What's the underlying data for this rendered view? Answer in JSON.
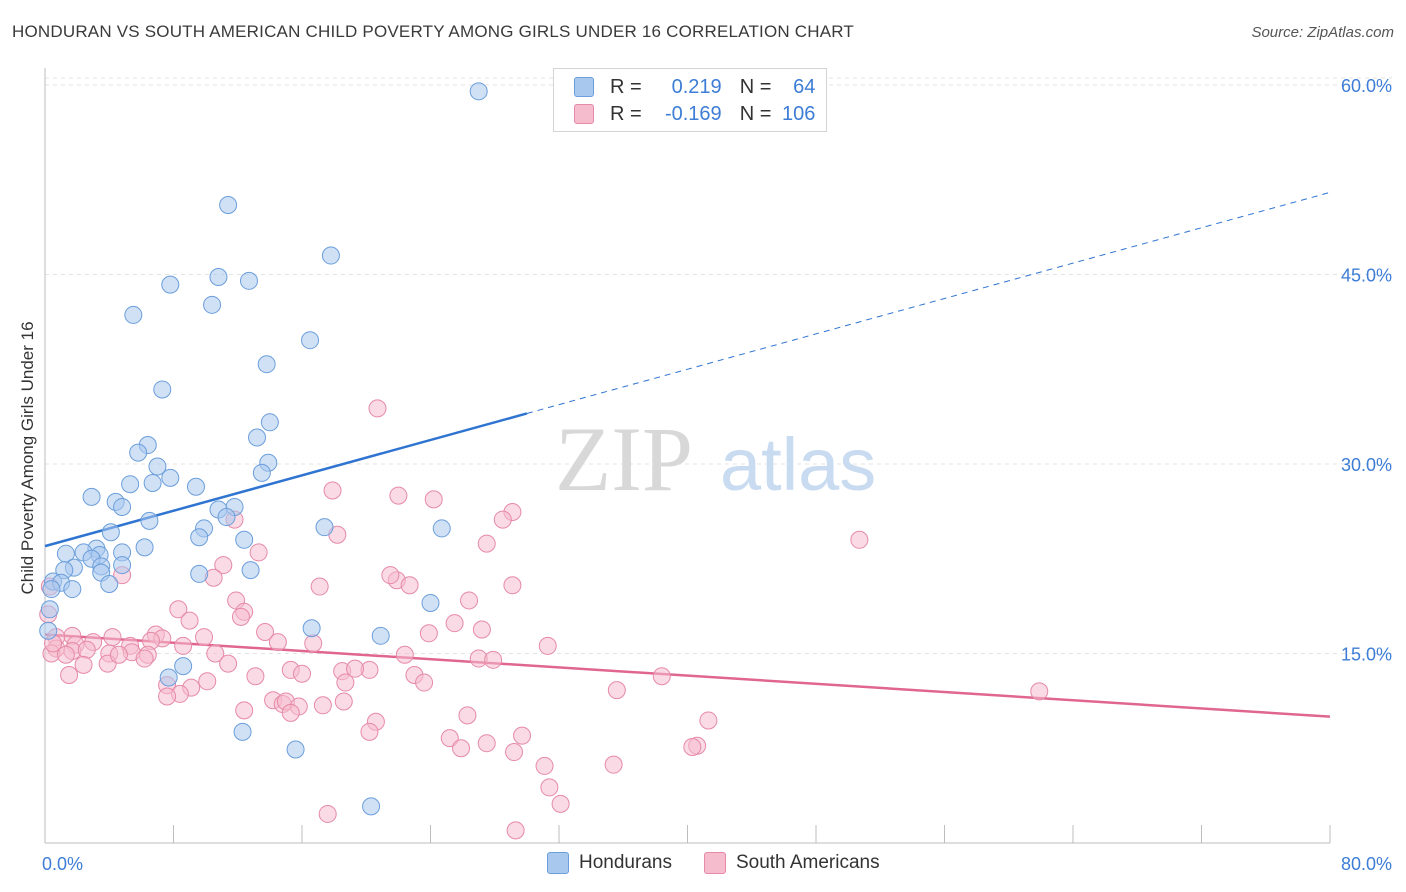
{
  "title": "HONDURAN VS SOUTH AMERICAN CHILD POVERTY AMONG GIRLS UNDER 16 CORRELATION CHART",
  "source": "Source: ZipAtlas.com",
  "watermark": {
    "zip": "ZIP",
    "atlas": "atlas"
  },
  "colors": {
    "blue_fill": "#a9c8ee",
    "blue_stroke": "#6b9edb",
    "blue_line": "#2f74d0",
    "pink_fill": "#f5bccd",
    "pink_stroke": "#e68aa8",
    "pink_line": "#e0668f",
    "tick_text": "#3d7dd6",
    "grid": "#e3e3e3"
  },
  "legend_stats": [
    {
      "series": "Hondurans",
      "r_label": "R =",
      "r_value": "0.219",
      "n_label": "N =",
      "n_value": "64"
    },
    {
      "series": "South Americans",
      "r_label": "R =",
      "r_value": "-0.169",
      "n_label": "N =",
      "n_value": "106"
    }
  ],
  "chart_data": {
    "type": "scatter",
    "title": "HONDURAN VS SOUTH AMERICAN CHILD POVERTY AMONG GIRLS UNDER 16 CORRELATION CHART",
    "xlabel": "",
    "ylabel": "Child Poverty Among Girls Under 16",
    "xlim": [
      0,
      80
    ],
    "ylim": [
      0,
      64
    ],
    "x_tick_labels": [
      "0.0%",
      "80.0%"
    ],
    "y_ticks": [
      15,
      30,
      45,
      60
    ],
    "y_tick_labels": [
      "15.0%",
      "30.0%",
      "45.0%",
      "60.0%"
    ],
    "grid": true,
    "legend_position": "bottom",
    "series": [
      {
        "name": "Hondurans",
        "color": "#a9c8ee",
        "trend": {
          "x": [
            0,
            30
          ],
          "y": [
            23.5,
            34.0
          ],
          "dashed_to": [
            80,
            51.5
          ]
        },
        "points": [
          [
            27.0,
            59.5
          ],
          [
            11.4,
            50.5
          ],
          [
            17.8,
            46.5
          ],
          [
            7.8,
            44.2
          ],
          [
            10.8,
            44.8
          ],
          [
            12.7,
            44.5
          ],
          [
            10.4,
            42.6
          ],
          [
            5.5,
            41.8
          ],
          [
            16.5,
            39.8
          ],
          [
            13.8,
            37.9
          ],
          [
            7.3,
            35.9
          ],
          [
            14.0,
            33.3
          ],
          [
            13.2,
            32.1
          ],
          [
            6.4,
            31.5
          ],
          [
            5.8,
            30.9
          ],
          [
            13.9,
            30.1
          ],
          [
            7.0,
            29.8
          ],
          [
            13.5,
            29.3
          ],
          [
            7.8,
            28.9
          ],
          [
            6.7,
            28.5
          ],
          [
            5.3,
            28.4
          ],
          [
            9.4,
            28.2
          ],
          [
            2.9,
            27.4
          ],
          [
            4.4,
            27.0
          ],
          [
            11.8,
            26.6
          ],
          [
            4.8,
            26.6
          ],
          [
            10.8,
            26.4
          ],
          [
            11.3,
            25.8
          ],
          [
            6.5,
            25.5
          ],
          [
            17.4,
            25.0
          ],
          [
            9.9,
            24.9
          ],
          [
            24.7,
            24.9
          ],
          [
            9.6,
            24.2
          ],
          [
            4.1,
            24.6
          ],
          [
            12.4,
            24.0
          ],
          [
            6.2,
            23.4
          ],
          [
            3.2,
            23.3
          ],
          [
            1.3,
            22.9
          ],
          [
            2.4,
            23.0
          ],
          [
            3.4,
            22.8
          ],
          [
            4.8,
            23.0
          ],
          [
            2.9,
            22.5
          ],
          [
            4.8,
            22.0
          ],
          [
            1.8,
            21.8
          ],
          [
            3.5,
            21.9
          ],
          [
            1.2,
            21.6
          ],
          [
            3.5,
            21.4
          ],
          [
            12.8,
            21.6
          ],
          [
            9.6,
            21.3
          ],
          [
            0.5,
            20.7
          ],
          [
            1.0,
            20.6
          ],
          [
            4.0,
            20.5
          ],
          [
            0.4,
            20.1
          ],
          [
            1.7,
            20.1
          ],
          [
            24.0,
            19.0
          ],
          [
            0.3,
            18.5
          ],
          [
            16.6,
            17.0
          ],
          [
            20.9,
            16.4
          ],
          [
            8.6,
            14.0
          ],
          [
            7.7,
            13.1
          ],
          [
            12.3,
            8.8
          ],
          [
            15.6,
            7.4
          ],
          [
            20.3,
            2.9
          ],
          [
            0.2,
            16.8
          ]
        ]
      },
      {
        "name": "South Americans",
        "color": "#f5bccd",
        "trend": {
          "x": [
            0,
            80
          ],
          "y": [
            16.5,
            10.0
          ]
        },
        "points": [
          [
            20.7,
            34.4
          ],
          [
            17.9,
            27.9
          ],
          [
            22.0,
            27.5
          ],
          [
            24.2,
            27.2
          ],
          [
            29.1,
            26.2
          ],
          [
            28.5,
            25.6
          ],
          [
            11.8,
            25.6
          ],
          [
            18.2,
            24.4
          ],
          [
            27.5,
            23.7
          ],
          [
            50.7,
            24.0
          ],
          [
            13.3,
            23.0
          ],
          [
            21.9,
            20.8
          ],
          [
            11.1,
            22.0
          ],
          [
            4.8,
            21.2
          ],
          [
            21.5,
            21.2
          ],
          [
            10.5,
            21.0
          ],
          [
            17.1,
            20.3
          ],
          [
            22.7,
            20.4
          ],
          [
            29.1,
            20.4
          ],
          [
            11.9,
            19.2
          ],
          [
            26.4,
            19.2
          ],
          [
            8.3,
            18.5
          ],
          [
            12.4,
            18.3
          ],
          [
            12.2,
            17.9
          ],
          [
            9.0,
            17.6
          ],
          [
            25.5,
            17.4
          ],
          [
            27.2,
            16.9
          ],
          [
            1.7,
            16.4
          ],
          [
            13.7,
            16.7
          ],
          [
            23.9,
            16.6
          ],
          [
            0.7,
            16.3
          ],
          [
            4.2,
            16.3
          ],
          [
            6.9,
            16.5
          ],
          [
            7.3,
            16.2
          ],
          [
            9.9,
            16.3
          ],
          [
            14.5,
            15.9
          ],
          [
            16.7,
            15.8
          ],
          [
            6.6,
            16.0
          ],
          [
            3.0,
            15.9
          ],
          [
            1.9,
            15.7
          ],
          [
            5.3,
            15.6
          ],
          [
            8.6,
            15.6
          ],
          [
            0.7,
            15.4
          ],
          [
            1.7,
            15.2
          ],
          [
            2.6,
            15.3
          ],
          [
            0.4,
            15.0
          ],
          [
            1.3,
            14.9
          ],
          [
            4.0,
            15.0
          ],
          [
            5.4,
            15.1
          ],
          [
            6.4,
            14.9
          ],
          [
            10.6,
            15.0
          ],
          [
            6.2,
            14.6
          ],
          [
            27.0,
            14.6
          ],
          [
            22.4,
            14.9
          ],
          [
            31.3,
            15.6
          ],
          [
            2.4,
            14.1
          ],
          [
            3.9,
            14.2
          ],
          [
            11.4,
            14.2
          ],
          [
            27.9,
            14.5
          ],
          [
            20.2,
            13.7
          ],
          [
            15.3,
            13.7
          ],
          [
            18.5,
            13.6
          ],
          [
            1.5,
            13.3
          ],
          [
            16.0,
            13.4
          ],
          [
            19.3,
            13.8
          ],
          [
            23.0,
            13.3
          ],
          [
            38.4,
            13.2
          ],
          [
            13.1,
            13.2
          ],
          [
            7.6,
            12.5
          ],
          [
            9.1,
            12.3
          ],
          [
            18.7,
            12.7
          ],
          [
            10.1,
            12.8
          ],
          [
            23.6,
            12.7
          ],
          [
            35.6,
            12.1
          ],
          [
            61.9,
            12.0
          ],
          [
            8.4,
            11.8
          ],
          [
            7.6,
            11.6
          ],
          [
            14.2,
            11.3
          ],
          [
            14.8,
            11.0
          ],
          [
            15.0,
            11.2
          ],
          [
            15.8,
            10.8
          ],
          [
            12.4,
            10.5
          ],
          [
            15.3,
            10.3
          ],
          [
            17.3,
            10.9
          ],
          [
            18.6,
            11.2
          ],
          [
            26.3,
            10.1
          ],
          [
            20.6,
            9.6
          ],
          [
            41.3,
            9.7
          ],
          [
            20.2,
            8.8
          ],
          [
            29.7,
            8.5
          ],
          [
            25.2,
            8.3
          ],
          [
            25.9,
            7.5
          ],
          [
            27.5,
            7.9
          ],
          [
            40.6,
            7.7
          ],
          [
            40.3,
            7.6
          ],
          [
            29.2,
            7.2
          ],
          [
            31.1,
            6.1
          ],
          [
            35.4,
            6.2
          ],
          [
            31.4,
            4.4
          ],
          [
            32.1,
            3.1
          ],
          [
            17.6,
            2.3
          ],
          [
            29.3,
            1.0
          ],
          [
            0.2,
            18.1
          ],
          [
            0.3,
            20.3
          ],
          [
            0.5,
            15.8
          ],
          [
            4.6,
            14.9
          ]
        ]
      }
    ]
  }
}
